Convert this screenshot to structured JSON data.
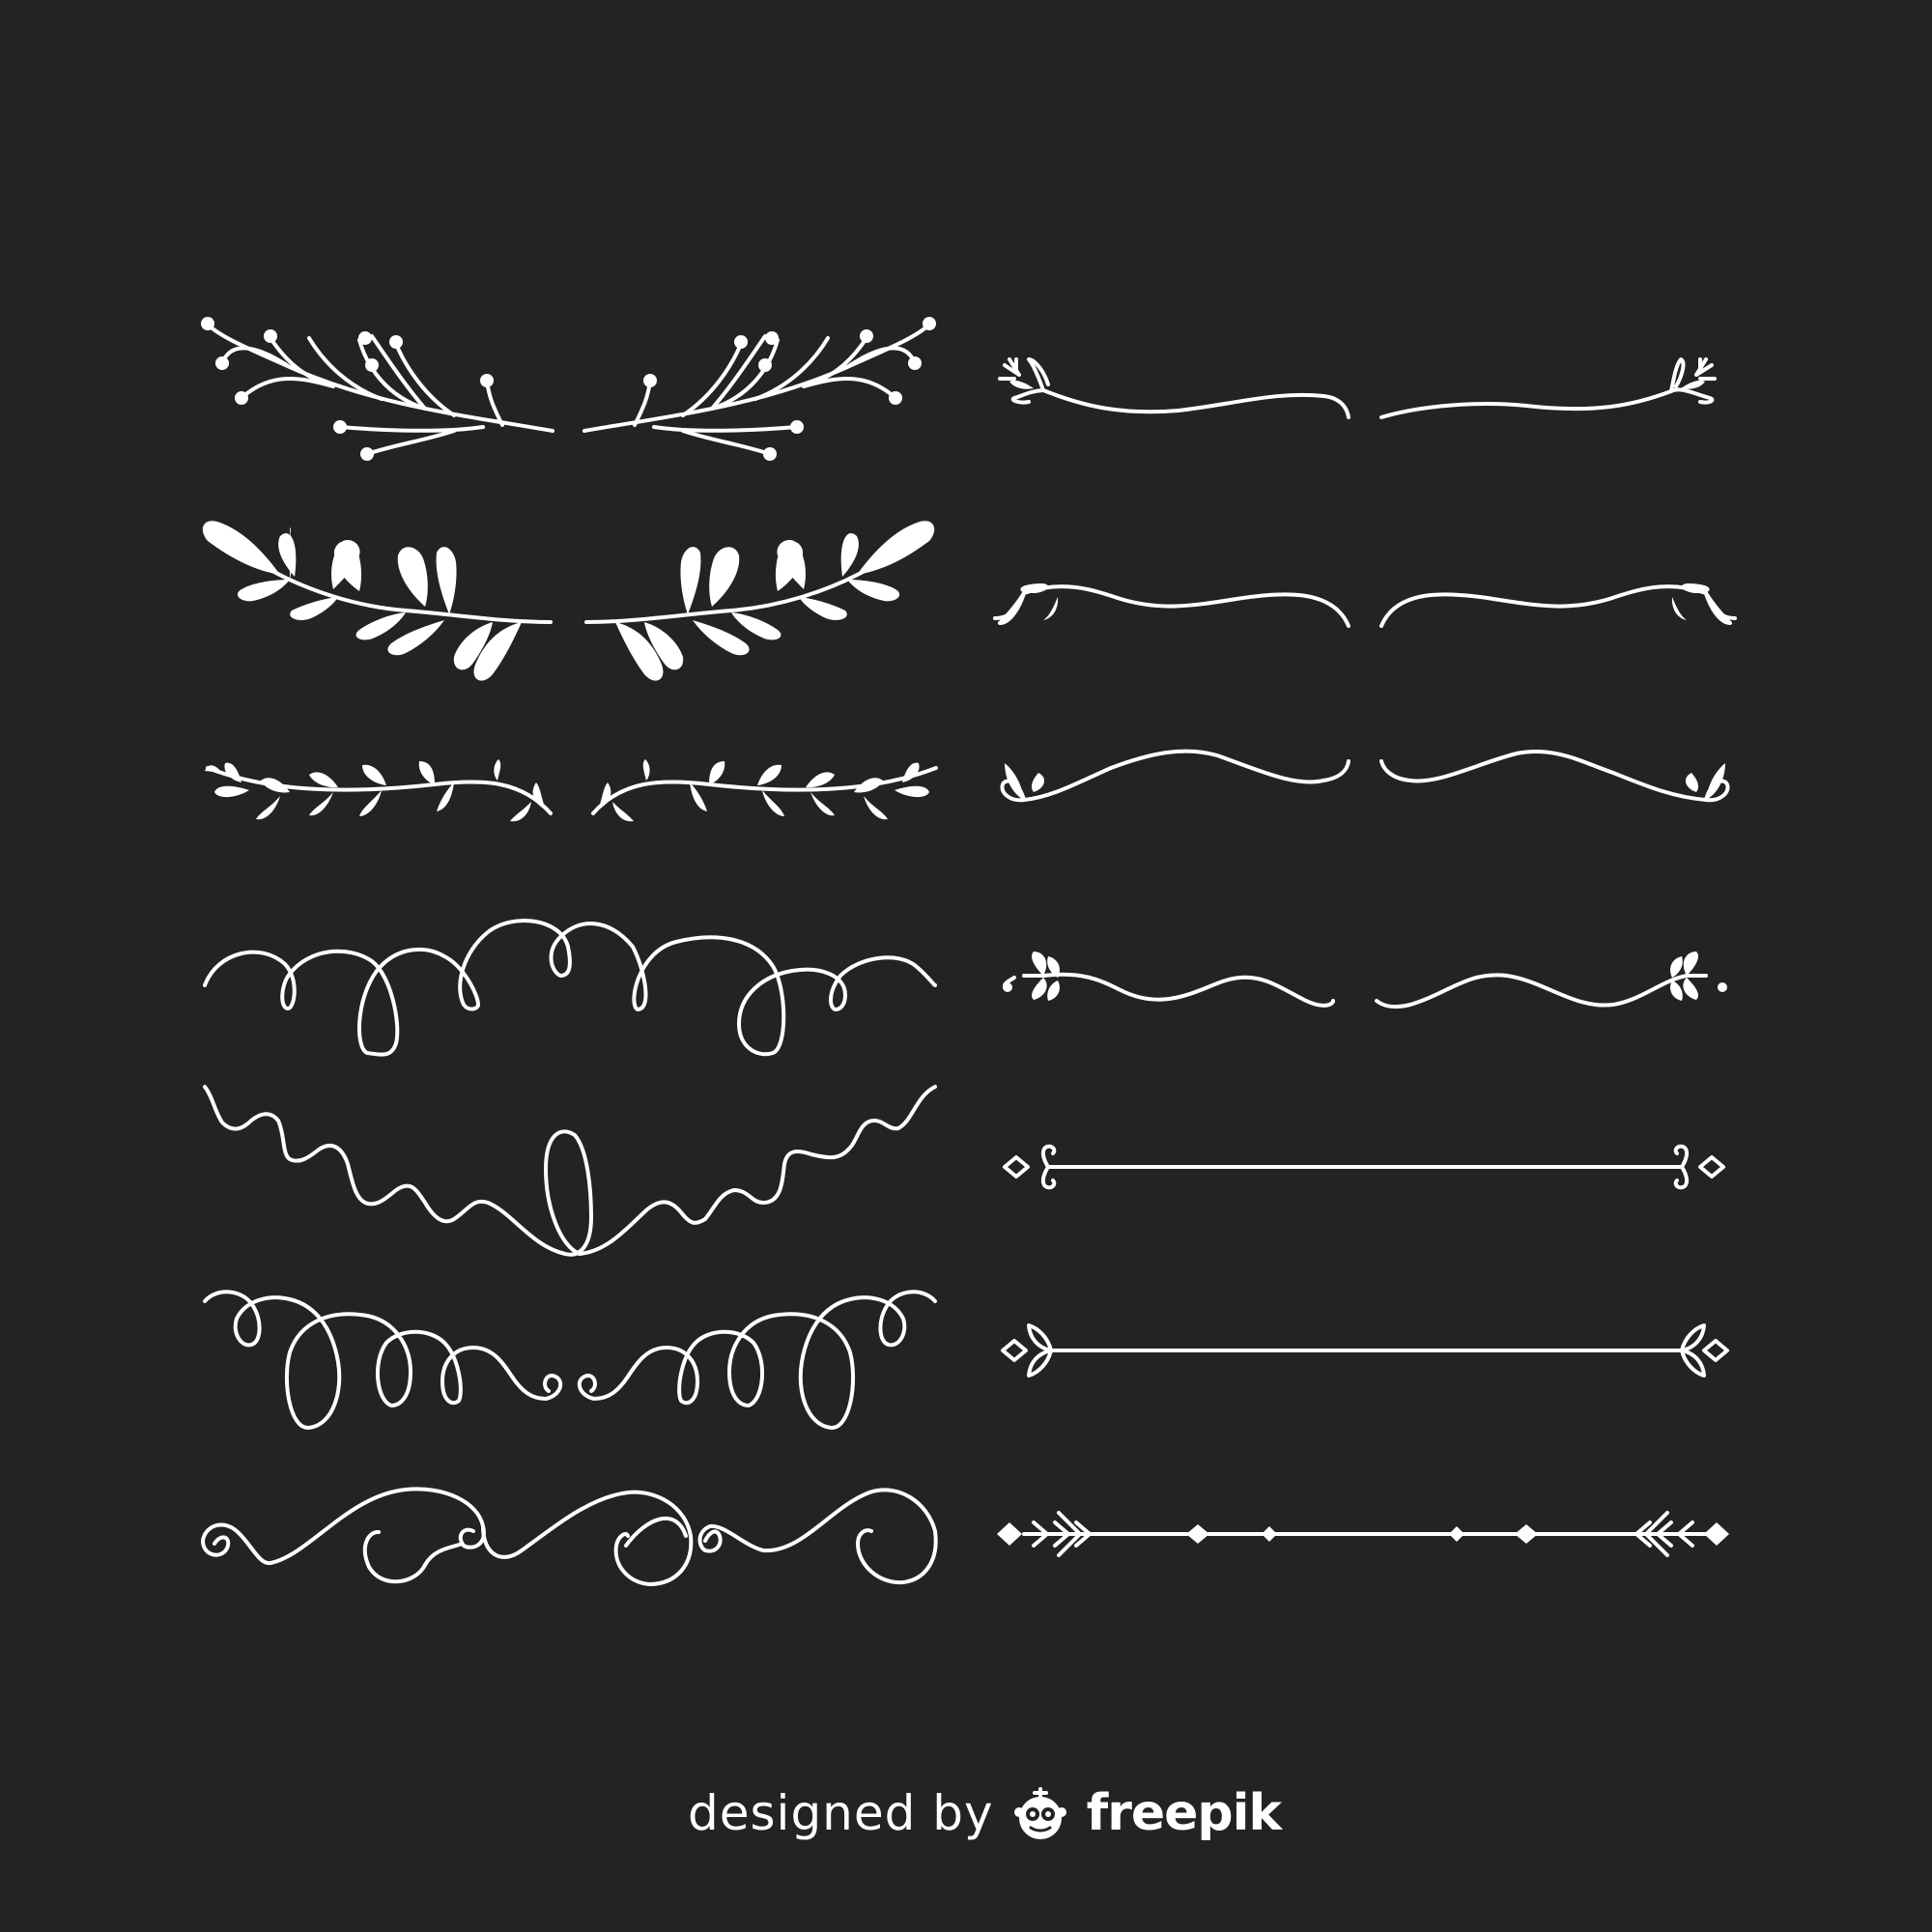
{
  "credit": {
    "prefix": "designed by",
    "brand": "freepik",
    "logo_icon": "freepik-logo-icon"
  },
  "colors": {
    "background": "#232323",
    "ornament": "#ffffff"
  },
  "ornaments": {
    "left_column": [
      "berry-branch-divider",
      "leaf-branch-divider",
      "vine-leaf-divider",
      "curl-loop-divider",
      "squiggle-loop-divider",
      "double-curl-divider",
      "swirl-scroll-divider"
    ],
    "right_column": [
      "sprig-wave-divider",
      "leaf-wave-divider",
      "leaf-tip-wave-divider",
      "heart-leaf-wave-divider",
      "diamond-hook-line-divider",
      "leaf-diamond-line-divider",
      "arrow-diamond-line-divider"
    ]
  }
}
